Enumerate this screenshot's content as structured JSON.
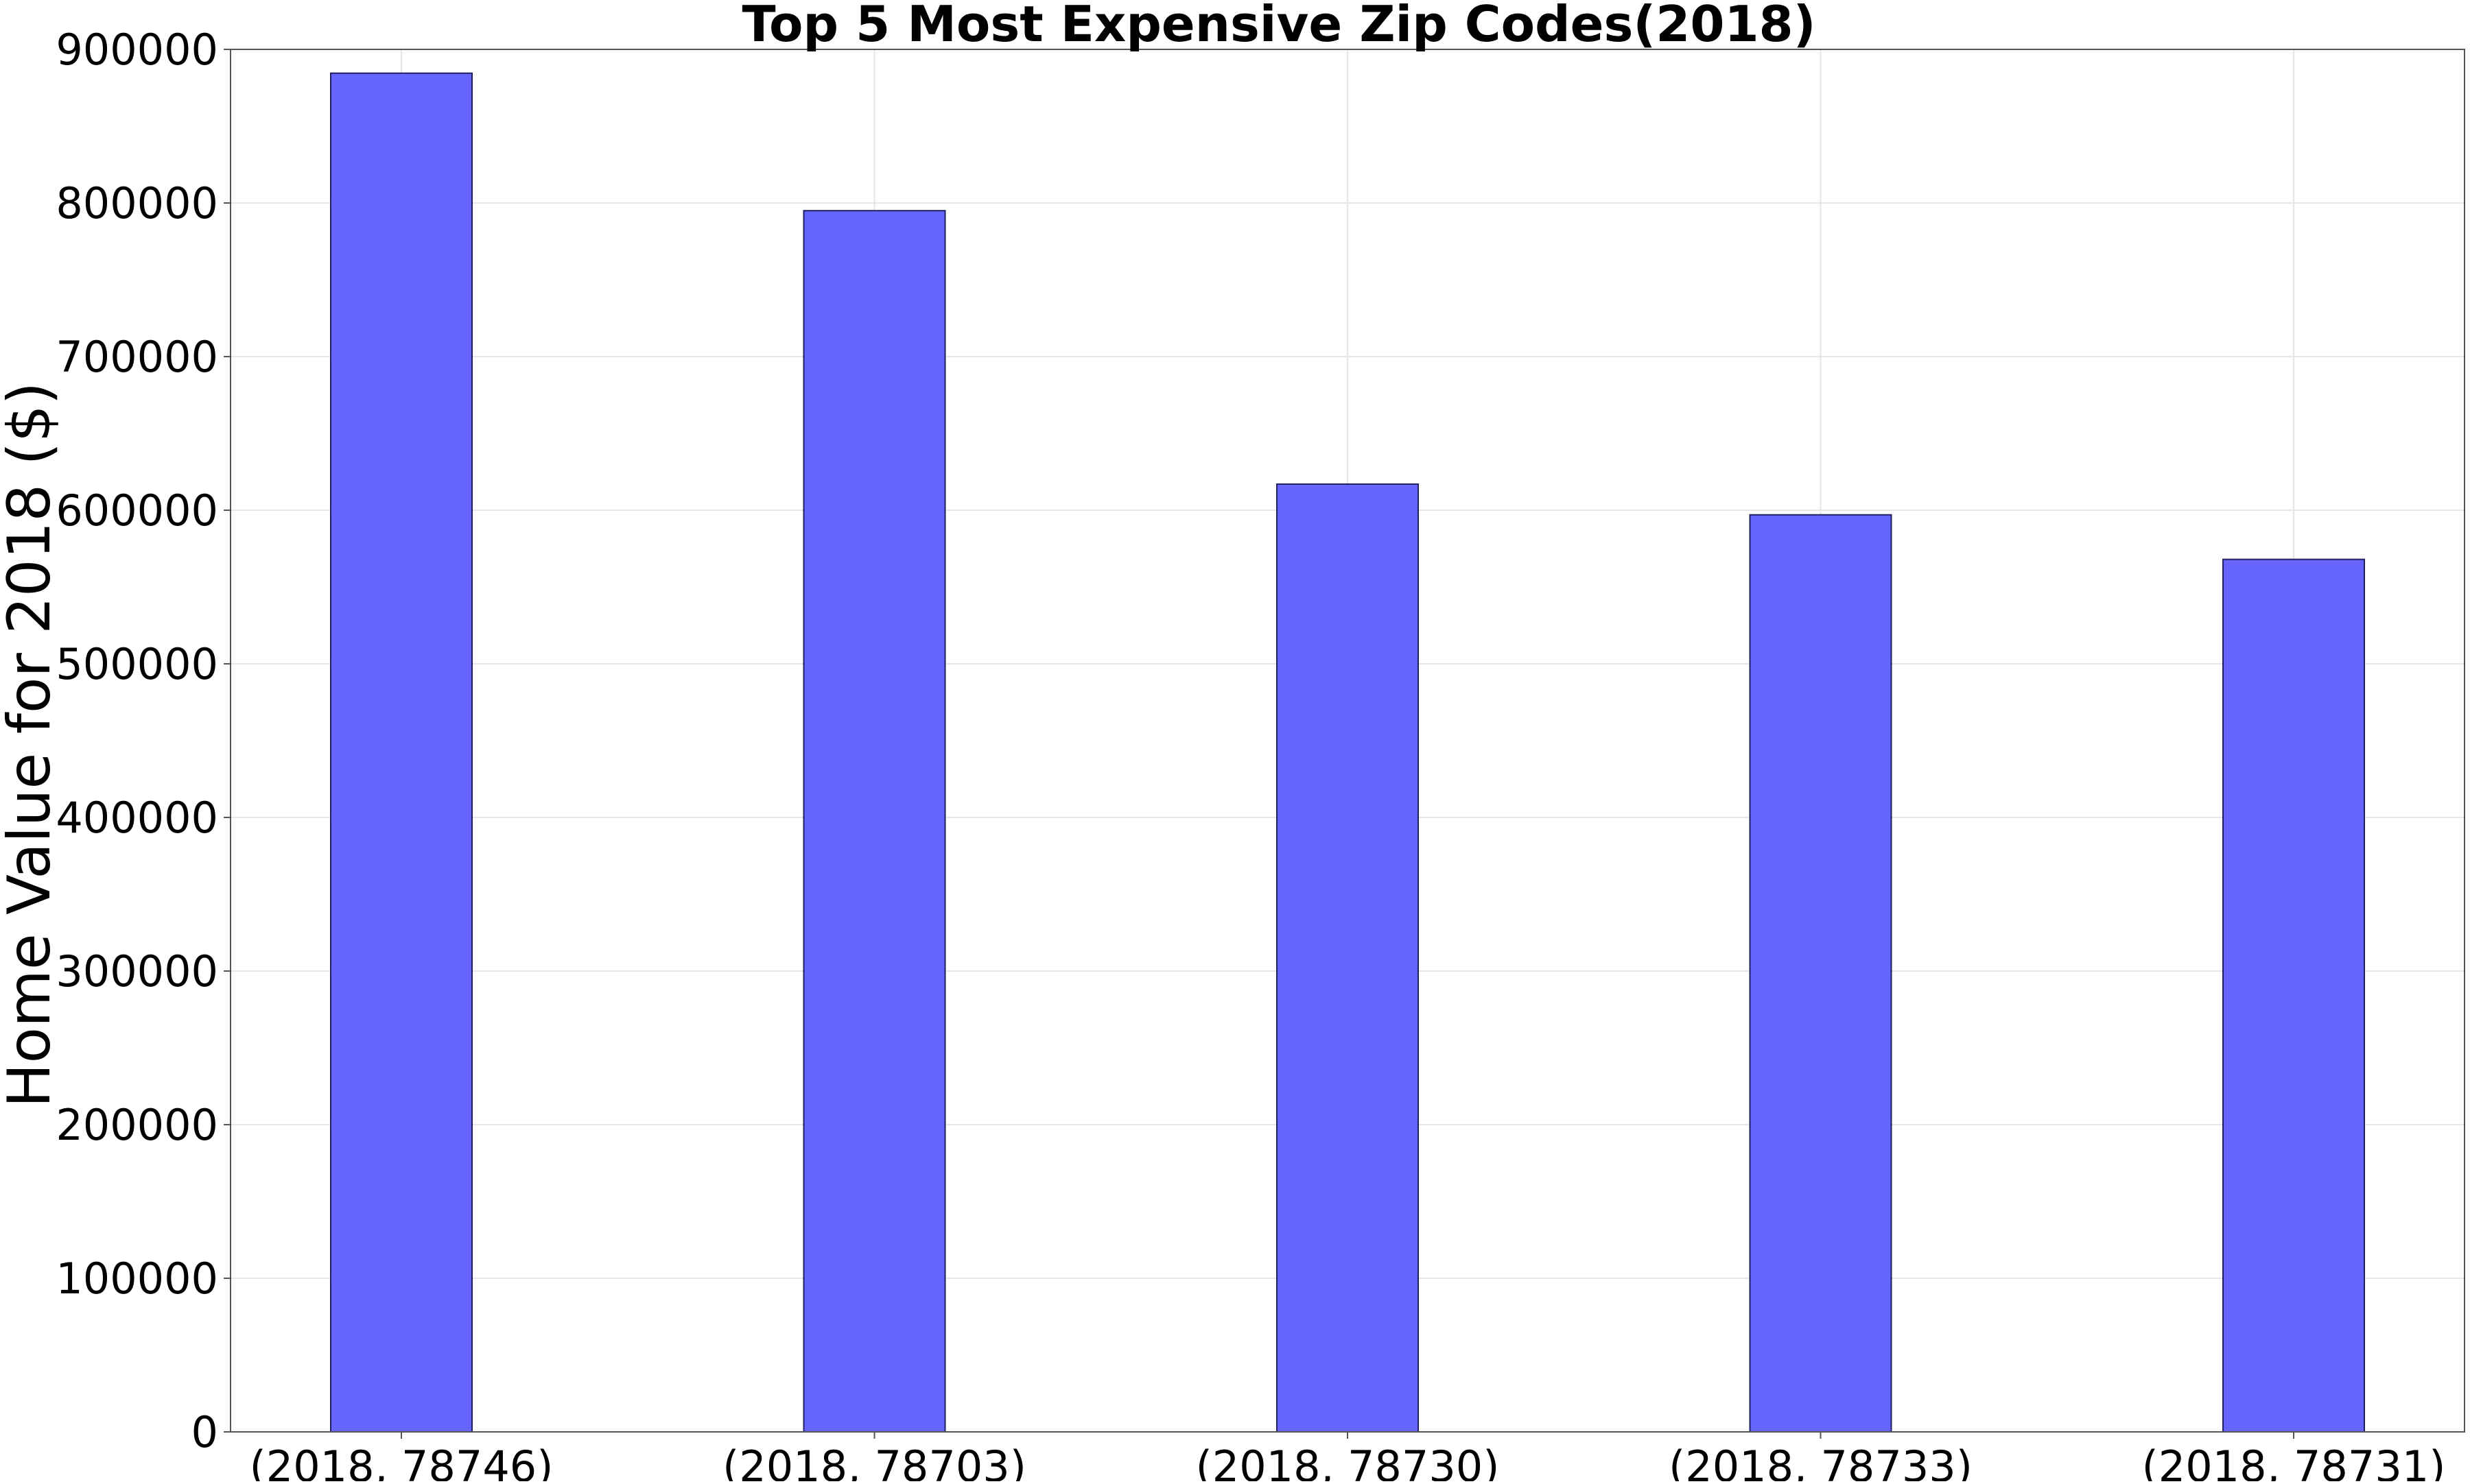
{
  "colors": {
    "bar_fill": "#6666ff",
    "bar_edge": "#202060",
    "grid": "#e6e6e6",
    "axes": "#555555",
    "background": "#ffffff"
  },
  "chart_data": {
    "type": "bar",
    "title": "Top 5 Most Expensive Zip Codes(2018)",
    "xlabel": "",
    "ylabel": "Home Value for 2018 ($)",
    "categories": [
      "(2018, 78746)",
      "(2018, 78703)",
      "(2018, 78730)",
      "(2018, 78733)",
      "(2018, 78731)"
    ],
    "values": [
      884500,
      795000,
      617000,
      597000,
      568000
    ],
    "ylim": [
      0,
      900000
    ],
    "yticks": [
      "0",
      "100000",
      "200000",
      "300000",
      "400000",
      "500000",
      "600000",
      "700000",
      "800000",
      "900000"
    ],
    "grid": true,
    "legend": "none"
  }
}
